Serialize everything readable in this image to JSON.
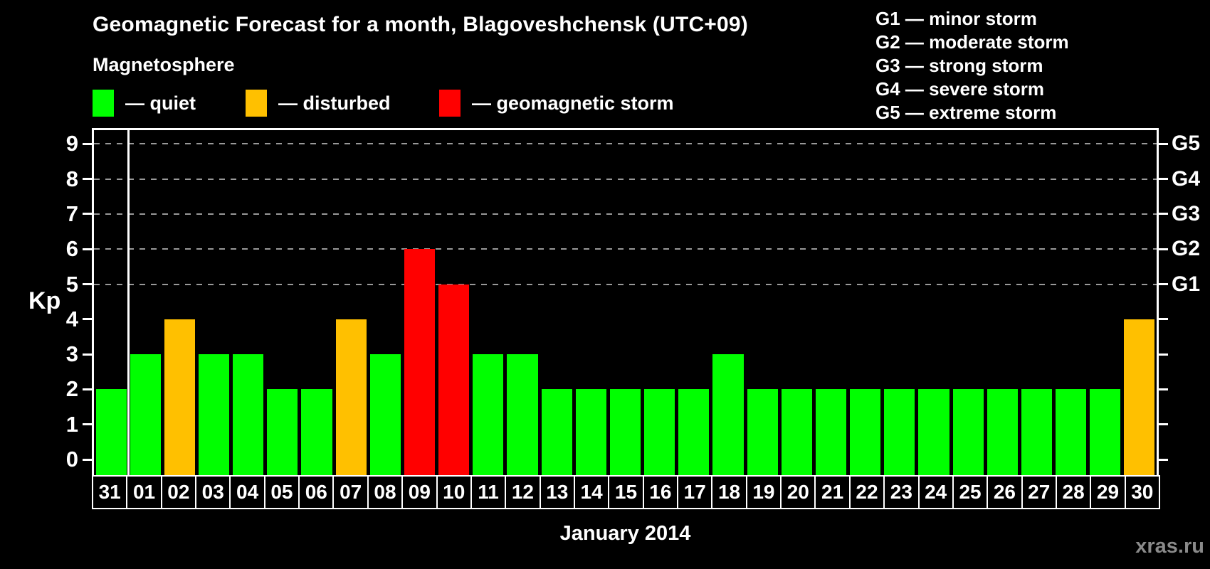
{
  "title": "Geomagnetic Forecast for a month, Blagoveshchensk (UTC+09)",
  "legend": {
    "title": "Magnetosphere",
    "items": [
      {
        "label": "— quiet",
        "color_key": "quiet"
      },
      {
        "label": "— disturbed",
        "color_key": "disturbed"
      },
      {
        "label": "— geomagnetic storm",
        "color_key": "storm"
      }
    ]
  },
  "g_legend": [
    "G1 — minor storm",
    "G2 — moderate storm",
    "G3 — strong storm",
    "G4 — severe storm",
    "G5 — extreme storm"
  ],
  "watermark": "xras.ru",
  "colors": {
    "quiet": "#00ff00",
    "disturbed": "#ffc000",
    "storm": "#ff0000",
    "axis": "#ffffff",
    "grid": "#999999",
    "text": "#ffffff",
    "watermark": "#8a8a8a",
    "background": "#000000"
  },
  "chart_data": {
    "type": "bar",
    "title": "Geomagnetic Forecast for a month, Blagoveshchensk (UTC+09)",
    "ylabel": "Kp",
    "xlabel": "January 2014",
    "categories": [
      "31",
      "01",
      "02",
      "03",
      "04",
      "05",
      "06",
      "07",
      "08",
      "09",
      "10",
      "11",
      "12",
      "13",
      "14",
      "15",
      "16",
      "17",
      "18",
      "19",
      "20",
      "21",
      "22",
      "23",
      "24",
      "25",
      "26",
      "27",
      "28",
      "29",
      "30"
    ],
    "values": [
      2,
      3,
      4,
      3,
      3,
      2,
      2,
      4,
      3,
      6,
      5,
      3,
      3,
      2,
      2,
      2,
      2,
      2,
      3,
      2,
      2,
      2,
      2,
      2,
      2,
      2,
      2,
      2,
      2,
      2,
      4
    ],
    "statuses": [
      "quiet",
      "quiet",
      "disturbed",
      "quiet",
      "quiet",
      "quiet",
      "quiet",
      "disturbed",
      "quiet",
      "storm",
      "storm",
      "quiet",
      "quiet",
      "quiet",
      "quiet",
      "quiet",
      "quiet",
      "quiet",
      "quiet",
      "quiet",
      "quiet",
      "quiet",
      "quiet",
      "quiet",
      "quiet",
      "quiet",
      "quiet",
      "quiet",
      "quiet",
      "quiet",
      "disturbed"
    ],
    "thresholds": {
      "disturbed_min": 4,
      "storm_min": 5
    },
    "ylim": [
      0,
      9
    ],
    "yticks": [
      0,
      1,
      2,
      3,
      4,
      5,
      6,
      7,
      8,
      9
    ],
    "gridlines_at": [
      5,
      6,
      7,
      8,
      9
    ],
    "grid_style": "dashed-horizontal",
    "right_axis_labels": [
      {
        "kp": 5,
        "label": "G1"
      },
      {
        "kp": 6,
        "label": "G2"
      },
      {
        "kp": 7,
        "label": "G3"
      },
      {
        "kp": 8,
        "label": "G4"
      },
      {
        "kp": 9,
        "label": "G5"
      }
    ],
    "month_separator_after_index": 0,
    "legend_position": "top-left"
  }
}
